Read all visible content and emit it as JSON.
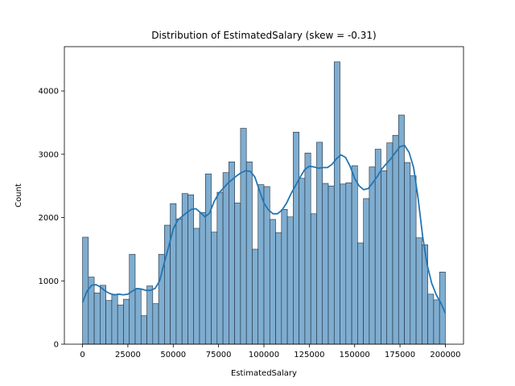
{
  "chart_data": {
    "type": "histogram",
    "title": "Distribution of EstimatedSalary (skew = -0.31)",
    "xlabel": "EstimatedSalary",
    "ylabel": "Count",
    "xlim": [
      -10000,
      210000
    ],
    "ylim": [
      0,
      4700
    ],
    "xticks": [
      0,
      25000,
      50000,
      75000,
      100000,
      125000,
      150000,
      175000,
      200000
    ],
    "xtick_labels": [
      "0",
      "25000",
      "50000",
      "75000",
      "100000",
      "125000",
      "150000",
      "175000",
      "200000"
    ],
    "yticks": [
      0,
      1000,
      2000,
      3000,
      4000
    ],
    "ytick_labels": [
      "0",
      "1000",
      "2000",
      "3000",
      "4000"
    ],
    "bin_range": [
      0,
      200000
    ],
    "bar_color": "#7fadd0",
    "bar_edge_color": "#1f2d3a",
    "kde_color": "#2176b4",
    "counts": [
      1690,
      1060,
      810,
      930,
      690,
      790,
      620,
      710,
      1420,
      880,
      450,
      920,
      640,
      1420,
      1880,
      2220,
      1980,
      2380,
      2360,
      1830,
      2080,
      2690,
      1770,
      2400,
      2710,
      2880,
      2230,
      3410,
      2880,
      1500,
      2520,
      2490,
      1970,
      1760,
      2130,
      2010,
      3350,
      2620,
      3020,
      2060,
      3190,
      2540,
      2500,
      4460,
      2530,
      2550,
      2820,
      1600,
      2300,
      2800,
      3080,
      2740,
      3180,
      3300,
      3620,
      2870,
      2660,
      1680,
      1570,
      790,
      700,
      1140
    ],
    "kde": {
      "x": [
        0,
        2500,
        5000,
        7500,
        10000,
        12500,
        15000,
        17500,
        20000,
        22500,
        25000,
        27500,
        30000,
        32500,
        35000,
        37500,
        40000,
        42500,
        45000,
        47500,
        50000,
        52500,
        55000,
        57500,
        60000,
        62500,
        65000,
        67500,
        70000,
        72500,
        75000,
        77500,
        80000,
        82500,
        85000,
        87500,
        90000,
        92500,
        95000,
        97500,
        100000,
        102500,
        105000,
        107500,
        110000,
        112500,
        115000,
        117500,
        120000,
        122500,
        125000,
        127500,
        130000,
        132500,
        135000,
        137500,
        140000,
        142500,
        145000,
        147500,
        150000,
        152500,
        155000,
        157500,
        160000,
        162500,
        165000,
        167500,
        170000,
        172500,
        175000,
        177500,
        180000,
        182500,
        185000,
        187500,
        190000,
        192500,
        195000,
        197500,
        200000
      ],
      "y": [
        660,
        840,
        930,
        940,
        900,
        840,
        800,
        780,
        790,
        780,
        790,
        840,
        880,
        870,
        850,
        850,
        880,
        1000,
        1280,
        1540,
        1820,
        1960,
        2020,
        2080,
        2130,
        2140,
        2080,
        2010,
        2070,
        2250,
        2380,
        2460,
        2540,
        2600,
        2660,
        2710,
        2740,
        2730,
        2640,
        2430,
        2230,
        2120,
        2060,
        2060,
        2120,
        2230,
        2380,
        2510,
        2640,
        2760,
        2810,
        2800,
        2780,
        2790,
        2790,
        2840,
        2930,
        2990,
        2950,
        2810,
        2620,
        2500,
        2440,
        2460,
        2550,
        2650,
        2770,
        2850,
        2930,
        3030,
        3120,
        3140,
        3030,
        2790,
        2300,
        1700,
        1250,
        960,
        780,
        650,
        490
      ]
    }
  }
}
